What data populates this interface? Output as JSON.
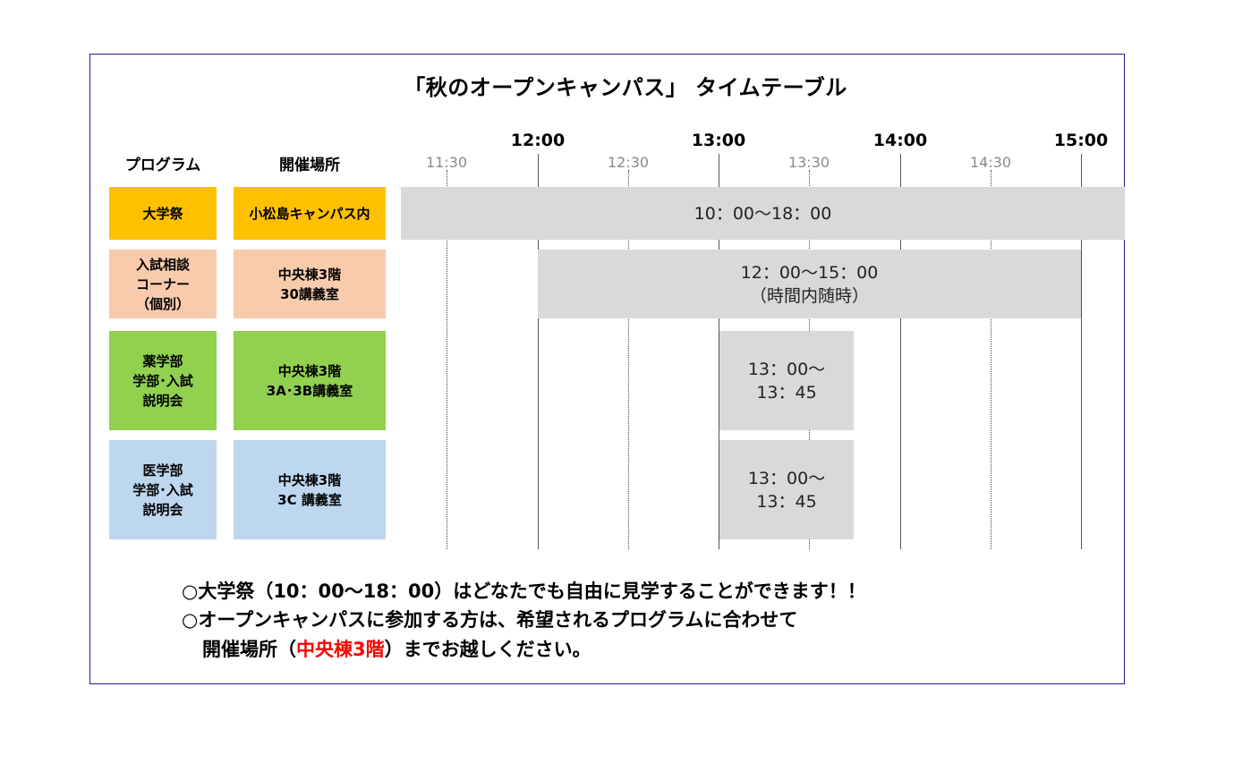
{
  "title": "「秋のオープンキャンパス」 タイムテーブル",
  "headers": {
    "program": "プログラム",
    "location": "開催場所"
  },
  "time_axis": {
    "hours": [
      "12:00",
      "13:00",
      "14:00",
      "15:00"
    ],
    "half_hours": [
      "11:30",
      "12:30",
      "13:30",
      "14:30"
    ]
  },
  "rows": [
    {
      "program": "大学祭",
      "location": "小松島キャンパス内",
      "time": "10：00～18：00",
      "color": "#ffc000"
    },
    {
      "program": "入試相談\nコーナー\n（個別）",
      "location": "中央棟3階\n30講義室",
      "time": "12：00～15：00\n（時間内随時）",
      "color": "#f8cbad"
    },
    {
      "program": "薬学部\n学部･入試\n説明会",
      "location": "中央棟3階\n3A･3B講義室",
      "time": "13：00～\n13：45",
      "color": "#92d050"
    },
    {
      "program": "医学部\n学部･入試\n説明会",
      "location": "中央棟3階\n3C 講義室",
      "time": "13：00～\n13：45",
      "color": "#bdd7ee"
    }
  ],
  "notes": {
    "line1": "○大学祭（10：00～18：00）はどなたでも自由に見学することができます！！",
    "line2": "○オープンキャンパスに参加する方は、希望されるプログラムに合わせて",
    "line3_prefix": "開催場所（",
    "line3_highlight": "中央棟3階",
    "line3_suffix": "）までお越しください。"
  },
  "bar_color": "#d9d9d9",
  "highlight_color": "#ff0000"
}
